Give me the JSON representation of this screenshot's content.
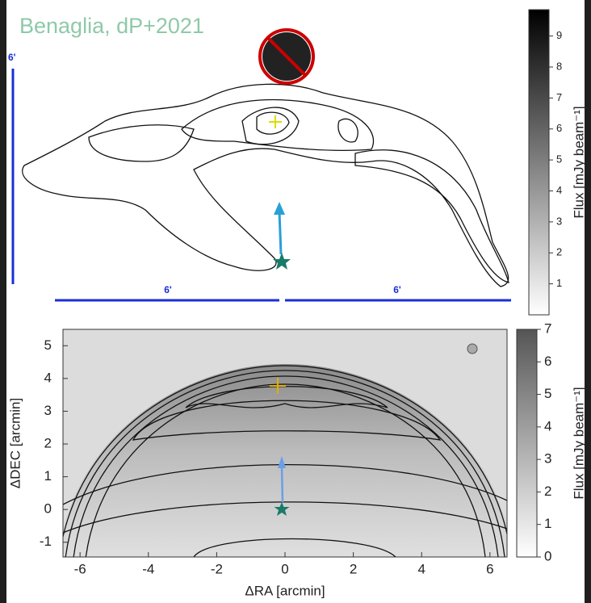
{
  "chart_data": [
    {
      "type": "contour",
      "annotation": "Benaglia, dP+2021",
      "scale_labels": [
        "6'",
        "6'",
        "6'"
      ],
      "colorbar_label": "Flux [mJy beam⁻¹]",
      "clim": [
        0,
        9.85
      ],
      "cticks": [
        1,
        2,
        3,
        4,
        5,
        6,
        7,
        8,
        9
      ]
    },
    {
      "type": "contour",
      "xlabel": "ΔRA [arcmin]",
      "ylabel": "ΔDEC [arcmin]",
      "xlim": [
        -6.5,
        6.5
      ],
      "xticks": [
        -6,
        -4,
        -2,
        0,
        2,
        4,
        6
      ],
      "ylim": [
        -1.45,
        5.5
      ],
      "yticks": [
        -1,
        0,
        1,
        2,
        3,
        4,
        5
      ],
      "colorbar_label": "Flux [mJy beam⁻¹]",
      "clim": [
        0,
        7
      ],
      "cticks": [
        0,
        1,
        2,
        3,
        4,
        5,
        6,
        7
      ]
    }
  ]
}
